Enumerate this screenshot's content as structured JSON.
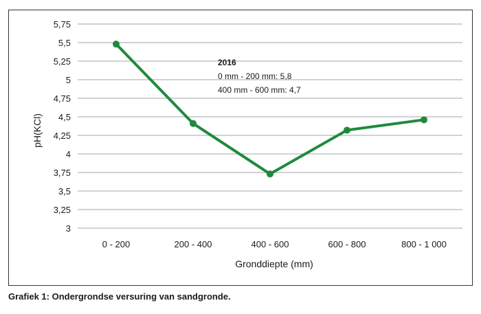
{
  "caption": "Grafiek 1: Ondergrondse versuring van sandgronde.",
  "chart_data": {
    "type": "line",
    "categories": [
      "0 - 200",
      "200 - 400",
      "400 - 600",
      "600 - 800",
      "800 - 1 000"
    ],
    "series": [
      {
        "values": [
          5.48,
          4.41,
          3.73,
          4.32,
          4.46
        ],
        "color": "#1e8a3c"
      }
    ],
    "xlabel": "Gronddiepte (mm)",
    "ylabel": "pH(KCl)",
    "ylim": [
      3,
      5.75
    ],
    "yticks": [
      "3",
      "3,25",
      "3,5",
      "3,75",
      "4",
      "4,25",
      "4,5",
      "4,75",
      "5",
      "5,25",
      "5,5",
      "5,75"
    ],
    "ytick_values": [
      3,
      3.25,
      3.5,
      3.75,
      4,
      4.25,
      4.5,
      4.75,
      5,
      5.25,
      5.5,
      5.75
    ],
    "grid": true,
    "annotation": {
      "title": "2016",
      "lines": [
        "0 mm - 200 mm: 5,8",
        "400 mm - 600 mm: 4,7"
      ]
    }
  }
}
